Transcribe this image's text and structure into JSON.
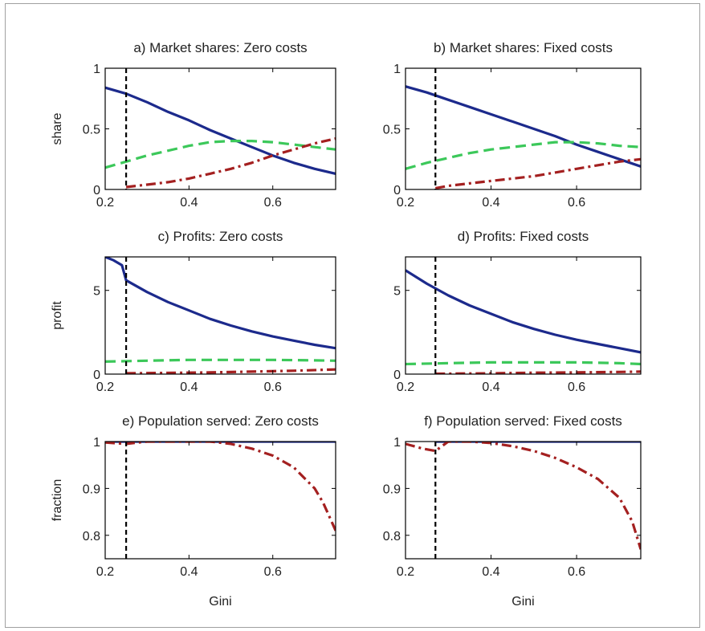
{
  "chart_data": [
    {
      "id": "a",
      "type": "line",
      "title": "a) Market shares: Zero costs",
      "ylabel": "share",
      "xlabel": "",
      "xlim": [
        0.2,
        0.75
      ],
      "ylim": [
        0,
        1
      ],
      "xticks": [
        0.2,
        0.4,
        0.6
      ],
      "yticks": [
        0,
        0.5,
        1
      ],
      "xtick_labels": [
        "0.2",
        "0.4",
        "0.6"
      ],
      "ytick_labels": [
        "0",
        "0.5",
        "1"
      ],
      "vline": 0.25,
      "series": [
        {
          "color": "#1c2a8c",
          "style": "solid",
          "points": [
            [
              0.2,
              0.84
            ],
            [
              0.25,
              0.79
            ],
            [
              0.3,
              0.72
            ],
            [
              0.35,
              0.64
            ],
            [
              0.4,
              0.57
            ],
            [
              0.45,
              0.49
            ],
            [
              0.5,
              0.42
            ],
            [
              0.55,
              0.35
            ],
            [
              0.6,
              0.28
            ],
            [
              0.65,
              0.22
            ],
            [
              0.7,
              0.17
            ],
            [
              0.75,
              0.13
            ]
          ]
        },
        {
          "color": "#3cc85a",
          "style": "dashed",
          "points": [
            [
              0.2,
              0.18
            ],
            [
              0.25,
              0.23
            ],
            [
              0.3,
              0.28
            ],
            [
              0.35,
              0.32
            ],
            [
              0.4,
              0.36
            ],
            [
              0.45,
              0.39
            ],
            [
              0.5,
              0.4
            ],
            [
              0.55,
              0.4
            ],
            [
              0.6,
              0.39
            ],
            [
              0.65,
              0.37
            ],
            [
              0.7,
              0.35
            ],
            [
              0.75,
              0.33
            ]
          ]
        },
        {
          "color": "#a42020",
          "style": "dashdot",
          "points": [
            [
              0.25,
              0.02
            ],
            [
              0.3,
              0.04
            ],
            [
              0.35,
              0.06
            ],
            [
              0.4,
              0.09
            ],
            [
              0.45,
              0.13
            ],
            [
              0.5,
              0.17
            ],
            [
              0.55,
              0.22
            ],
            [
              0.6,
              0.28
            ],
            [
              0.65,
              0.33
            ],
            [
              0.7,
              0.38
            ],
            [
              0.75,
              0.42
            ]
          ]
        }
      ]
    },
    {
      "id": "b",
      "type": "line",
      "title": "b) Market shares: Fixed costs",
      "ylabel": "",
      "xlabel": "",
      "xlim": [
        0.2,
        0.75
      ],
      "ylim": [
        0,
        1
      ],
      "xticks": [
        0.2,
        0.4,
        0.6
      ],
      "yticks": [
        0,
        0.5,
        1
      ],
      "xtick_labels": [
        "0.2",
        "0.4",
        "0.6"
      ],
      "ytick_labels": [
        "0",
        "0.5",
        "1"
      ],
      "vline": 0.27,
      "series": [
        {
          "color": "#1c2a8c",
          "style": "solid",
          "points": [
            [
              0.2,
              0.85
            ],
            [
              0.25,
              0.8
            ],
            [
              0.3,
              0.74
            ],
            [
              0.35,
              0.68
            ],
            [
              0.4,
              0.62
            ],
            [
              0.45,
              0.56
            ],
            [
              0.5,
              0.5
            ],
            [
              0.55,
              0.44
            ],
            [
              0.6,
              0.37
            ],
            [
              0.65,
              0.31
            ],
            [
              0.7,
              0.25
            ],
            [
              0.75,
              0.19
            ]
          ]
        },
        {
          "color": "#3cc85a",
          "style": "dashed",
          "points": [
            [
              0.2,
              0.17
            ],
            [
              0.25,
              0.22
            ],
            [
              0.3,
              0.26
            ],
            [
              0.35,
              0.3
            ],
            [
              0.4,
              0.33
            ],
            [
              0.45,
              0.35
            ],
            [
              0.5,
              0.37
            ],
            [
              0.55,
              0.39
            ],
            [
              0.6,
              0.39
            ],
            [
              0.65,
              0.38
            ],
            [
              0.7,
              0.36
            ],
            [
              0.75,
              0.35
            ]
          ]
        },
        {
          "color": "#a42020",
          "style": "dashdot",
          "points": [
            [
              0.27,
              0.01
            ],
            [
              0.3,
              0.03
            ],
            [
              0.35,
              0.05
            ],
            [
              0.4,
              0.07
            ],
            [
              0.45,
              0.09
            ],
            [
              0.5,
              0.11
            ],
            [
              0.55,
              0.14
            ],
            [
              0.6,
              0.17
            ],
            [
              0.65,
              0.2
            ],
            [
              0.7,
              0.23
            ],
            [
              0.75,
              0.25
            ]
          ]
        }
      ]
    },
    {
      "id": "c",
      "type": "line",
      "title": "c) Profits: Zero costs",
      "ylabel": "profit",
      "xlabel": "",
      "xlim": [
        0.2,
        0.75
      ],
      "ylim": [
        0,
        7
      ],
      "xticks": [
        0.2,
        0.4,
        0.6
      ],
      "yticks": [
        0,
        5
      ],
      "xtick_labels": [
        "0.2",
        "0.4",
        "0.6"
      ],
      "ytick_labels": [
        "0",
        "5"
      ],
      "vline": 0.25,
      "series": [
        {
          "color": "#1c2a8c",
          "style": "solid",
          "points": [
            [
              0.2,
              7.0
            ],
            [
              0.22,
              6.8
            ],
            [
              0.24,
              6.5
            ],
            [
              0.25,
              5.6
            ],
            [
              0.3,
              4.9
            ],
            [
              0.35,
              4.3
            ],
            [
              0.4,
              3.8
            ],
            [
              0.45,
              3.3
            ],
            [
              0.5,
              2.9
            ],
            [
              0.55,
              2.55
            ],
            [
              0.6,
              2.25
            ],
            [
              0.65,
              2.0
            ],
            [
              0.7,
              1.75
            ],
            [
              0.75,
              1.55
            ]
          ]
        },
        {
          "color": "#3cc85a",
          "style": "dashed",
          "points": [
            [
              0.2,
              0.75
            ],
            [
              0.3,
              0.8
            ],
            [
              0.4,
              0.85
            ],
            [
              0.5,
              0.85
            ],
            [
              0.6,
              0.85
            ],
            [
              0.7,
              0.82
            ],
            [
              0.75,
              0.8
            ]
          ]
        },
        {
          "color": "#a42020",
          "style": "dashdot",
          "points": [
            [
              0.25,
              0.05
            ],
            [
              0.35,
              0.07
            ],
            [
              0.45,
              0.1
            ],
            [
              0.55,
              0.15
            ],
            [
              0.65,
              0.2
            ],
            [
              0.75,
              0.28
            ]
          ]
        }
      ]
    },
    {
      "id": "d",
      "type": "line",
      "title": "d) Profits: Fixed costs",
      "ylabel": "",
      "xlabel": "",
      "xlim": [
        0.2,
        0.75
      ],
      "ylim": [
        0,
        7
      ],
      "xticks": [
        0.2,
        0.4,
        0.6
      ],
      "yticks": [
        0,
        5
      ],
      "xtick_labels": [
        "0.2",
        "0.4",
        "0.6"
      ],
      "ytick_labels": [
        "0",
        "5"
      ],
      "vline": 0.27,
      "series": [
        {
          "color": "#1c2a8c",
          "style": "solid",
          "points": [
            [
              0.2,
              6.2
            ],
            [
              0.25,
              5.4
            ],
            [
              0.3,
              4.7
            ],
            [
              0.35,
              4.1
            ],
            [
              0.4,
              3.6
            ],
            [
              0.45,
              3.1
            ],
            [
              0.5,
              2.7
            ],
            [
              0.55,
              2.35
            ],
            [
              0.6,
              2.05
            ],
            [
              0.65,
              1.8
            ],
            [
              0.7,
              1.55
            ],
            [
              0.75,
              1.3
            ]
          ]
        },
        {
          "color": "#3cc85a",
          "style": "dashed",
          "points": [
            [
              0.2,
              0.6
            ],
            [
              0.3,
              0.65
            ],
            [
              0.4,
              0.7
            ],
            [
              0.5,
              0.7
            ],
            [
              0.6,
              0.7
            ],
            [
              0.7,
              0.65
            ],
            [
              0.75,
              0.6
            ]
          ]
        },
        {
          "color": "#a42020",
          "style": "dashdot",
          "points": [
            [
              0.27,
              0.02
            ],
            [
              0.4,
              0.05
            ],
            [
              0.5,
              0.08
            ],
            [
              0.6,
              0.1
            ],
            [
              0.7,
              0.13
            ],
            [
              0.75,
              0.15
            ]
          ]
        }
      ]
    },
    {
      "id": "e",
      "type": "line",
      "title": "e) Population served: Zero costs",
      "ylabel": "fraction",
      "xlabel": "Gini",
      "xlim": [
        0.2,
        0.75
      ],
      "ylim": [
        0.75,
        1
      ],
      "xticks": [
        0.2,
        0.4,
        0.6
      ],
      "yticks": [
        0.8,
        0.9,
        1
      ],
      "xtick_labels": [
        "0.2",
        "0.4",
        "0.6"
      ],
      "ytick_labels": [
        "0.8",
        "0.9",
        "1"
      ],
      "vline": 0.25,
      "series": [
        {
          "color": "#1c2a8c",
          "style": "solid",
          "points": [
            [
              0.2,
              1.0
            ],
            [
              0.75,
              1.0
            ]
          ]
        },
        {
          "color": "#a42020",
          "style": "dashdot",
          "points": [
            [
              0.2,
              0.998
            ],
            [
              0.25,
              0.995
            ],
            [
              0.3,
              1.0
            ],
            [
              0.35,
              1.0
            ],
            [
              0.4,
              1.0
            ],
            [
              0.45,
              1.0
            ],
            [
              0.5,
              0.995
            ],
            [
              0.55,
              0.985
            ],
            [
              0.6,
              0.97
            ],
            [
              0.65,
              0.945
            ],
            [
              0.7,
              0.9
            ],
            [
              0.72,
              0.87
            ],
            [
              0.74,
              0.83
            ],
            [
              0.75,
              0.81
            ]
          ]
        }
      ]
    },
    {
      "id": "f",
      "type": "line",
      "title": "f) Population served: Fixed costs",
      "ylabel": "",
      "xlabel": "Gini",
      "xlim": [
        0.2,
        0.75
      ],
      "ylim": [
        0.75,
        1
      ],
      "xticks": [
        0.2,
        0.4,
        0.6
      ],
      "yticks": [
        0.8,
        0.9,
        1
      ],
      "xtick_labels": [
        "0.2",
        "0.4",
        "0.6"
      ],
      "ytick_labels": [
        "0.8",
        "0.9",
        "1"
      ],
      "vline": 0.27,
      "series": [
        {
          "color": "#1c2a8c",
          "style": "solid",
          "points": [
            [
              0.27,
              1.0
            ],
            [
              0.75,
              1.0
            ]
          ]
        },
        {
          "color": "#a42020",
          "style": "dashdot",
          "points": [
            [
              0.2,
              0.995
            ],
            [
              0.24,
              0.985
            ],
            [
              0.27,
              0.98
            ],
            [
              0.3,
              1.0
            ],
            [
              0.35,
              1.0
            ],
            [
              0.4,
              0.997
            ],
            [
              0.45,
              0.99
            ],
            [
              0.5,
              0.98
            ],
            [
              0.55,
              0.965
            ],
            [
              0.6,
              0.945
            ],
            [
              0.65,
              0.92
            ],
            [
              0.7,
              0.88
            ],
            [
              0.73,
              0.83
            ],
            [
              0.75,
              0.77
            ]
          ]
        }
      ]
    }
  ]
}
